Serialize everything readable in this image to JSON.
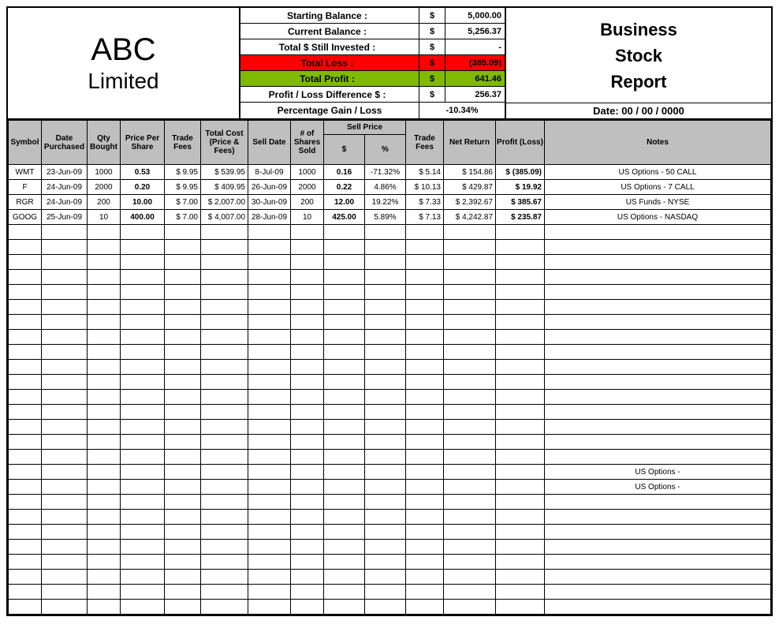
{
  "company": {
    "name": "ABC",
    "sub": "Limited"
  },
  "summary": {
    "starting_balance": {
      "label": "Starting Balance :",
      "cur": "$",
      "val": "5,000.00"
    },
    "current_balance": {
      "label": "Current Balance :",
      "cur": "$",
      "val": "5,256.37"
    },
    "still_invested": {
      "label": "Total $ Still Invested :",
      "cur": "$",
      "val": "-"
    },
    "total_loss": {
      "label": "Total Loss :",
      "cur": "$",
      "val": "(385.09)",
      "bg": "#ff0000"
    },
    "total_profit": {
      "label": "Total Profit :",
      "cur": "$",
      "val": "641.46",
      "bg": "#7fba00"
    },
    "pl_diff": {
      "label": "Profit / Loss Difference $ :",
      "cur": "$",
      "val": "256.37"
    },
    "pct": {
      "label": "Percentage Gain / Loss",
      "val": "-10.34%"
    }
  },
  "title": {
    "line1": "Business",
    "line2": "Stock",
    "line3": "Report",
    "date_label": "Date: 00 / 00 / 0000"
  },
  "columns": {
    "symbol": "Symbol",
    "date_purchased": "Date Purchased",
    "qty_bought": "Qty Bought",
    "price_per_share": "Price Per Share",
    "trade_fees": "Trade Fees",
    "total_cost": "Total Cost (Price & Fees)",
    "sell_date": "Sell Date",
    "shares_sold": "# of Shares Sold",
    "sell_price_group": "Sell Price",
    "sell_price_dollar": "$",
    "sell_price_pct": "%",
    "sell_trade_fees": "Trade Fees",
    "net_return": "Net Return",
    "profit_loss": "Profit (Loss)",
    "notes": "Notes"
  },
  "rows": [
    {
      "symbol": "WMT",
      "date": "23-Jun-09",
      "qty": "1000",
      "pps": "0.53",
      "fees": "$   9.95",
      "cost": "$     539.95",
      "sdate": "8-Jul-09",
      "ssold": "1000",
      "sp": "0.16",
      "spct": "-71.32%",
      "sfees": "$   5.14",
      "netret": "$      154.86",
      "pl": "$   (385.09)",
      "notes": "US Options - 50 CALL"
    },
    {
      "symbol": "F",
      "date": "24-Jun-09",
      "qty": "2000",
      "pps": "0.20",
      "fees": "$   9.95",
      "cost": "$     409.95",
      "sdate": "26-Jun-09",
      "ssold": "2000",
      "sp": "0.22",
      "spct": "4.86%",
      "sfees": "$ 10.13",
      "netret": "$      429.87",
      "pl": "$       19.92",
      "notes": "US Options - 7 CALL"
    },
    {
      "symbol": "RGR",
      "date": "24-Jun-09",
      "qty": "200",
      "pps": "10.00",
      "fees": "$   7.00",
      "cost": "$  2,007.00",
      "sdate": "30-Jun-09",
      "ssold": "200",
      "sp": "12.00",
      "spct": "19.22%",
      "sfees": "$   7.33",
      "netret": "$   2,392.67",
      "pl": "$     385.67",
      "notes": "US Funds - NYSE"
    },
    {
      "symbol": "GOOG",
      "date": "25-Jun-09",
      "qty": "10",
      "pps": "400.00",
      "fees": "$   7.00",
      "cost": "$  4,007.00",
      "sdate": "28-Jun-09",
      "ssold": "10",
      "sp": "425.00",
      "spct": "5.89%",
      "sfees": "$   7.13",
      "netret": "$   4,242.87",
      "pl": "$     235.87",
      "notes": "US Options - NASDAQ"
    }
  ],
  "empty_rows_before_tail": 16,
  "tail_notes": [
    "US Options -",
    "US Options -"
  ],
  "empty_rows_after_tail": 8,
  "styling": {
    "header_bg": "#bfbfbf",
    "loss_bg": "#ff0000",
    "profit_bg": "#7fba00",
    "border_color": "#000000",
    "header_font_size": 10,
    "body_font_size": 10,
    "company_font_size": 40,
    "title_font_size": 22
  }
}
